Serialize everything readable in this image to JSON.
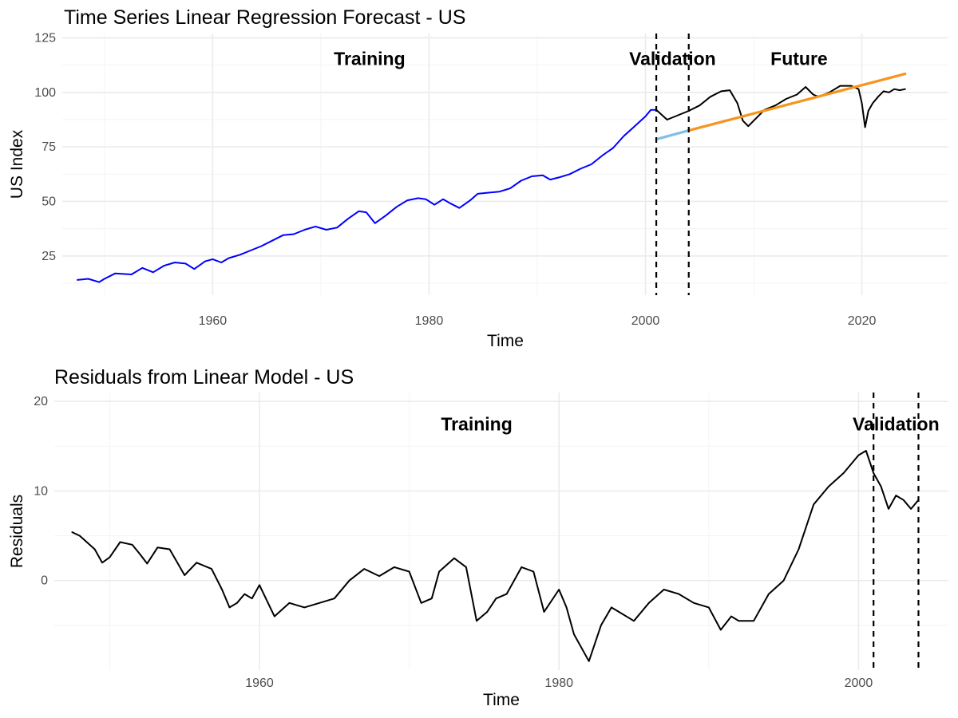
{
  "chart_data": [
    {
      "type": "line",
      "title": "Time Series Linear Regression Forecast - US",
      "xlabel": "Time",
      "ylabel": "US Index",
      "xlim": [
        1946.1,
        2028.0
      ],
      "ylim": [
        7,
        127
      ],
      "x_ticks": [
        1960,
        1980,
        2000,
        2020
      ],
      "x_tick_labels": [
        "1960",
        "1980",
        "2000",
        "2020"
      ],
      "y_ticks": [
        25,
        50,
        75,
        100,
        125
      ],
      "y_tick_labels": [
        "25",
        "50",
        "75",
        "100",
        "125"
      ],
      "grid": true,
      "legend": "none",
      "vlines": [
        2001.0,
        2004.0
      ],
      "annotations": [
        {
          "text": "Training",
          "x": 1974.5,
          "y": 115.5
        },
        {
          "text": "Validation",
          "x": 2002.5,
          "y": 115.5
        },
        {
          "text": "Future",
          "x": 2014.2,
          "y": 115.5
        }
      ],
      "series": [
        {
          "role": "training-actual",
          "color": "#0000ff",
          "x": [
            1947.5,
            1948.5,
            1949.5,
            1950.0,
            1951.0,
            1952.5,
            1953.5,
            1954.5,
            1955.5,
            1956.5,
            1957.5,
            1958.3,
            1959.3,
            1960.0,
            1960.8,
            1961.5,
            1962.5,
            1963.5,
            1964.5,
            1965.5,
            1966.5,
            1967.5,
            1968.5,
            1969.5,
            1970.5,
            1971.5,
            1972.5,
            1973.5,
            1974.2,
            1975.0,
            1976.0,
            1977.0,
            1978.0,
            1979.0,
            1979.7,
            1980.5,
            1981.3,
            1982.0,
            1982.8,
            1983.8,
            1984.5,
            1985.5,
            1986.5,
            1987.5,
            1988.5,
            1989.5,
            1990.5,
            1991.2,
            1992.0,
            1993.0,
            1994.0,
            1995.0,
            1996.0,
            1997.0,
            1998.0,
            1999.0,
            2000.0,
            2000.5,
            2001.0
          ],
          "y": [
            14,
            14.5,
            13,
            14.5,
            17,
            16.5,
            19.5,
            17.5,
            20.5,
            22,
            21.5,
            19,
            22.5,
            23.5,
            22,
            24,
            25.5,
            27.5,
            29.5,
            32,
            34.5,
            35,
            37,
            38.5,
            37,
            38,
            42,
            45.5,
            45,
            40,
            43.5,
            47.5,
            50.5,
            51.5,
            51,
            48.5,
            51,
            49,
            47,
            50.5,
            53.5,
            54,
            54.5,
            56,
            59.5,
            61.5,
            62,
            60,
            61,
            62.5,
            65,
            67,
            71,
            74.5,
            80,
            84.5,
            89,
            92,
            92
          ]
        },
        {
          "role": "actual-after-training",
          "color": "#000000",
          "x": [
            2001.0,
            2002.0,
            2003.0,
            2004.0,
            2005.0,
            2006.0,
            2007.0,
            2007.8,
            2008.5,
            2009.0,
            2009.5,
            2010.2,
            2011.0,
            2012.0,
            2013.0,
            2014.0,
            2014.8,
            2015.5,
            2016.0,
            2017.0,
            2018.0,
            2019.0,
            2019.7,
            2020.0,
            2020.3,
            2020.6,
            2021.0,
            2021.5,
            2022.0,
            2022.5,
            2023.0,
            2023.5,
            2024.0
          ],
          "y": [
            92,
            87.5,
            89.5,
            91.5,
            94,
            98,
            100.5,
            101,
            95,
            87,
            84.5,
            88,
            92,
            94,
            97,
            99,
            102.5,
            99,
            98,
            100,
            103,
            103,
            101.5,
            95,
            84,
            91.5,
            95,
            98,
            100.5,
            100,
            101.5,
            101,
            101.5
          ]
        },
        {
          "role": "validation-forecast",
          "color": "#7fbfe6",
          "x": [
            2001.0,
            2004.0
          ],
          "y": [
            78.5,
            82.5
          ]
        },
        {
          "role": "future-forecast",
          "color": "#f7941d",
          "x": [
            2004.0,
            2024.0
          ],
          "y": [
            82.5,
            108.5
          ]
        }
      ]
    },
    {
      "type": "line",
      "title": "Residuals from Linear Model - US",
      "xlabel": "Time",
      "ylabel": "Residuals",
      "xlim": [
        1946.3,
        2006.0
      ],
      "ylim": [
        -10,
        21
      ],
      "x_ticks": [
        1960,
        1980,
        2000
      ],
      "x_tick_labels": [
        "1960",
        "1980",
        "2000"
      ],
      "y_ticks": [
        0,
        10,
        20
      ],
      "y_tick_labels": [
        "0",
        "10",
        "20"
      ],
      "grid": true,
      "legend": "none",
      "vlines": [
        2001.0,
        2004.0
      ],
      "annotations": [
        {
          "text": "Training",
          "x": 1974.5,
          "y": 17.5
        },
        {
          "text": "Validation",
          "x": 2002.5,
          "y": 17.5
        }
      ],
      "series": [
        {
          "role": "residuals",
          "color": "#000000",
          "x": [
            1947.5,
            1948.0,
            1949.0,
            1949.5,
            1950.0,
            1950.7,
            1951.5,
            1952.0,
            1952.5,
            1953.2,
            1954.0,
            1955.0,
            1955.8,
            1956.8,
            1957.5,
            1958.0,
            1958.5,
            1959.0,
            1959.5,
            1960.0,
            1961.0,
            1962.0,
            1963.0,
            1964.0,
            1965.0,
            1966.0,
            1967.0,
            1968.0,
            1969.0,
            1970.0,
            1970.8,
            1971.5,
            1972.0,
            1973.0,
            1973.8,
            1974.5,
            1975.2,
            1975.8,
            1976.5,
            1977.5,
            1978.3,
            1979.0,
            1980.0,
            1980.5,
            1981.0,
            1982.0,
            1982.8,
            1983.5,
            1984.0,
            1985.0,
            1986.0,
            1987.0,
            1988.0,
            1989.0,
            1990.0,
            1990.8,
            1991.5,
            1992.0,
            1993.0,
            1994.0,
            1995.0,
            1996.0,
            1997.0,
            1998.0,
            1999.0,
            2000.0,
            2000.5,
            2001.0,
            2001.5,
            2002.0,
            2002.5,
            2003.0,
            2003.5,
            2004.0
          ],
          "y": [
            5.4,
            5,
            3.5,
            2,
            2.6,
            4.3,
            4,
            3,
            1.9,
            3.7,
            3.5,
            0.6,
            2,
            1.3,
            -1,
            -3,
            -2.5,
            -1.5,
            -2,
            -0.5,
            -4,
            -2.5,
            -3,
            -2.5,
            -2,
            0,
            1.3,
            0.5,
            1.5,
            1,
            -2.5,
            -2,
            1,
            2.5,
            1.5,
            -4.5,
            -3.5,
            -2,
            -1.5,
            1.5,
            1,
            -3.5,
            -1,
            -3,
            -6,
            -9,
            -5,
            -3,
            -3.5,
            -4.5,
            -2.5,
            -1,
            -1.5,
            -2.5,
            -3,
            -5.5,
            -4,
            -4.5,
            -4.5,
            -1.5,
            0,
            3.5,
            8.5,
            10.5,
            12,
            14,
            14.5,
            12,
            10.5,
            8,
            9.5,
            9,
            8,
            9
          ]
        }
      ]
    }
  ]
}
